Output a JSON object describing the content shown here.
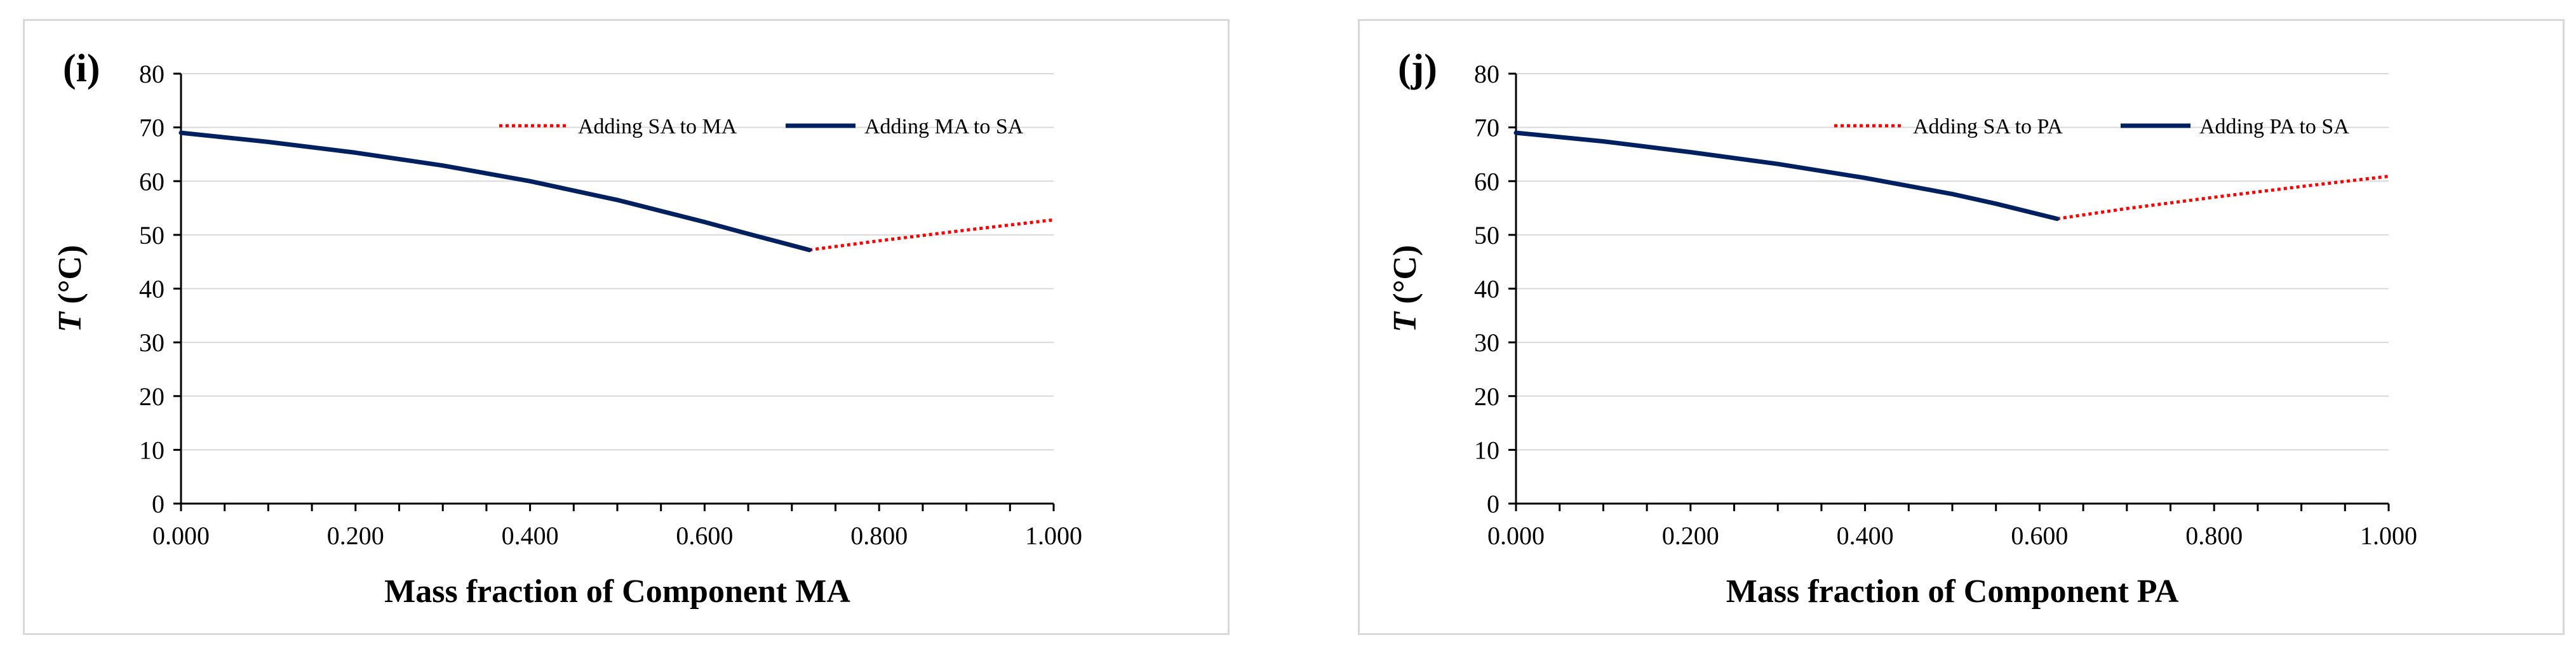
{
  "chart_data": [
    {
      "type": "line",
      "panel_label": "(i)",
      "xlabel": "Mass fraction of Component MA",
      "ylabel": "T (°C)",
      "ylabel_var": "T",
      "ylabel_unit": " (°C)",
      "xlim": [
        0,
        1
      ],
      "ylim": [
        0,
        80
      ],
      "x_ticks": [
        0,
        0.2,
        0.4,
        0.6,
        0.8,
        1.0
      ],
      "x_tick_labels": [
        "0.000",
        "0.200",
        "0.400",
        "0.600",
        "0.800",
        "1.000"
      ],
      "y_ticks": [
        0,
        10,
        20,
        30,
        40,
        50,
        60,
        70,
        80
      ],
      "y_tick_labels": [
        "0",
        "10",
        "20",
        "30",
        "40",
        "50",
        "60",
        "70",
        "80"
      ],
      "grid": "horizontal",
      "legend_position": "top-right",
      "series": [
        {
          "name": "Adding SA to MA",
          "style": "dotted",
          "color": "#ff0000",
          "x": [
            0.72,
            0.8,
            0.9,
            1.0
          ],
          "y": [
            47.2,
            48.9,
            50.9,
            52.8
          ]
        },
        {
          "name": "Adding MA to SA",
          "style": "solid",
          "color": "#002060",
          "x": [
            0.0,
            0.1,
            0.2,
            0.3,
            0.4,
            0.5,
            0.6,
            0.65,
            0.72
          ],
          "y": [
            69.0,
            67.3,
            65.3,
            62.9,
            60.0,
            56.5,
            52.4,
            50.2,
            47.2
          ]
        }
      ]
    },
    {
      "type": "line",
      "panel_label": "(j)",
      "xlabel": "Mass fraction of Component PA",
      "ylabel": "T (°C)",
      "ylabel_var": "T",
      "ylabel_unit": " (°C)",
      "xlim": [
        0,
        1
      ],
      "ylim": [
        0,
        80
      ],
      "x_ticks": [
        0,
        0.2,
        0.4,
        0.6,
        0.8,
        1.0
      ],
      "x_tick_labels": [
        "0.000",
        "0.200",
        "0.400",
        "0.600",
        "0.800",
        "1.000"
      ],
      "y_ticks": [
        0,
        10,
        20,
        30,
        40,
        50,
        60,
        70,
        80
      ],
      "y_tick_labels": [
        "0",
        "10",
        "20",
        "30",
        "40",
        "50",
        "60",
        "70",
        "80"
      ],
      "grid": "horizontal",
      "legend_position": "top-right",
      "series": [
        {
          "name": "Adding SA to PA",
          "style": "dotted",
          "color": "#ff0000",
          "x": [
            0.62,
            0.7,
            0.8,
            0.9,
            1.0
          ],
          "y": [
            53.0,
            54.9,
            57.0,
            59.0,
            60.9
          ]
        },
        {
          "name": "Adding PA to SA",
          "style": "solid",
          "color": "#002060",
          "x": [
            0.0,
            0.1,
            0.2,
            0.3,
            0.4,
            0.5,
            0.55,
            0.62
          ],
          "y": [
            69.0,
            67.4,
            65.4,
            63.2,
            60.6,
            57.6,
            55.8,
            53.0
          ]
        }
      ]
    }
  ]
}
